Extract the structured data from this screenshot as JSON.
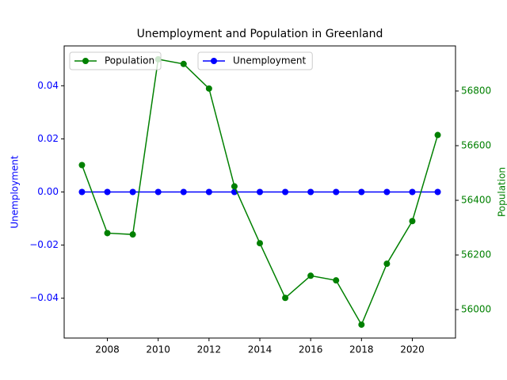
{
  "chart_data": {
    "type": "line",
    "title": "Unemployment and Population in Greenland",
    "ylabel": "Unemployment",
    "y2label": "Population",
    "x": [
      2007,
      2008,
      2009,
      2010,
      2011,
      2012,
      2013,
      2014,
      2015,
      2016,
      2017,
      2018,
      2019,
      2020,
      2021
    ],
    "xlim": [
      2006.3,
      2021.7
    ],
    "xticks": [
      2008,
      2010,
      2012,
      2014,
      2016,
      2018,
      2020
    ],
    "ylim": [
      -0.055,
      0.055
    ],
    "yticks": [
      {
        "value": -0.04,
        "label": "−0.04"
      },
      {
        "value": -0.02,
        "label": "−0.02"
      },
      {
        "value": 0,
        "label": "0.00"
      },
      0.02,
      0.04
    ],
    "y2lim": [
      55896,
      56965
    ],
    "y2ticks": [
      56000,
      56200,
      56400,
      56600,
      56800
    ],
    "series": [
      {
        "name": "Unemployment",
        "color": "#0000ff",
        "axis": "y",
        "legend_loc": "upper center",
        "values": [
          0,
          0,
          0,
          0,
          0,
          0,
          0,
          0,
          0,
          0,
          0,
          0,
          0,
          0,
          0
        ]
      },
      {
        "name": "Population",
        "color": "#008000",
        "axis": "y2",
        "legend_loc": "upper left",
        "values": [
          56529,
          56280,
          56275,
          56916,
          56899,
          56809,
          56451,
          56243,
          56043,
          56124,
          56107,
          55945,
          56168,
          56324,
          56639
        ]
      }
    ]
  }
}
